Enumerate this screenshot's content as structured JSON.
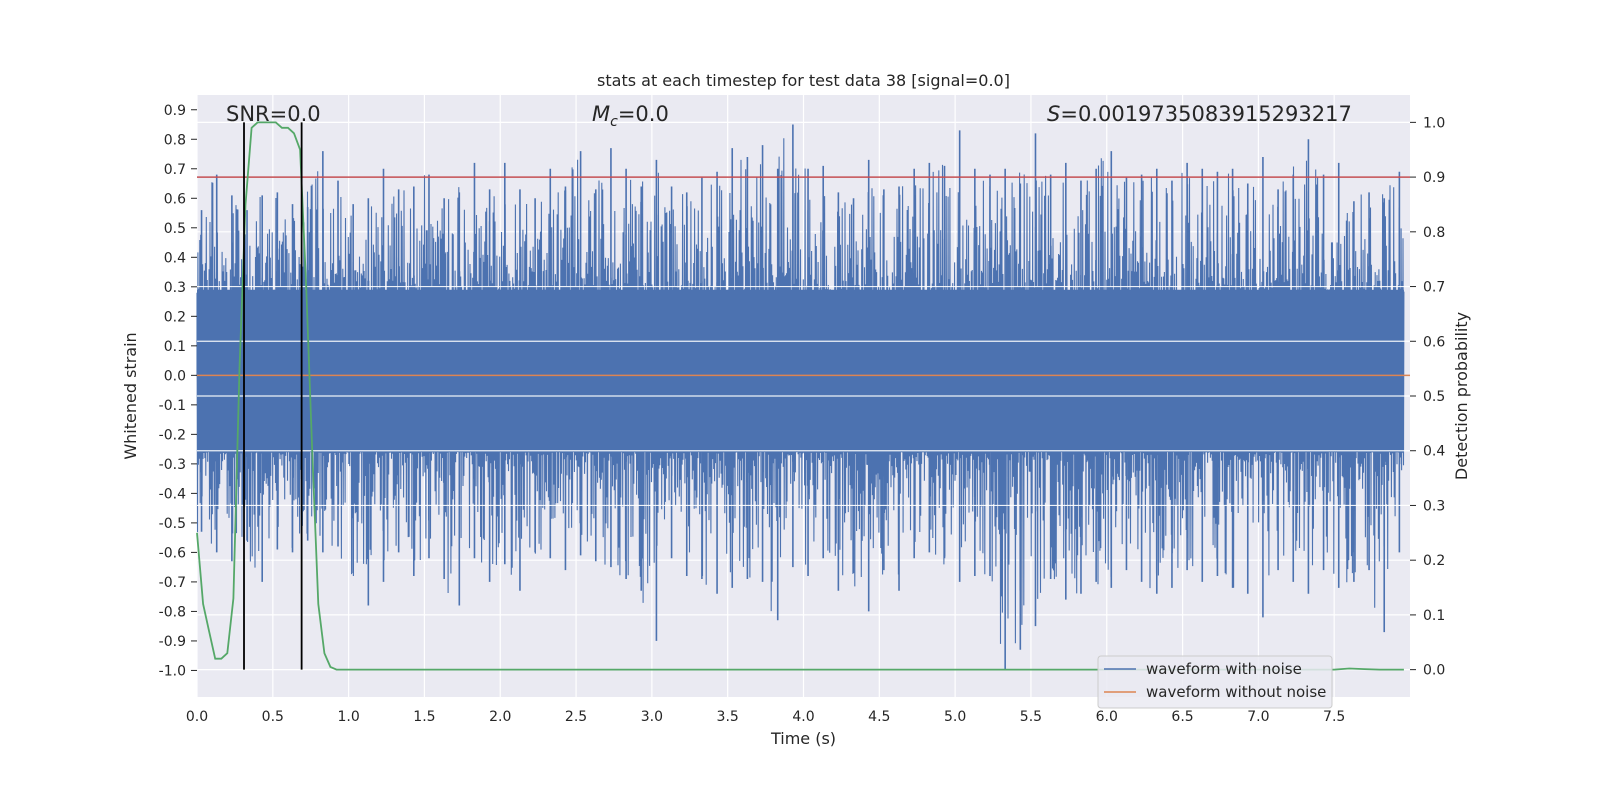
{
  "chart_data": {
    "type": "line",
    "title": "stats at each timestep for test data 38 [signal=0.0]",
    "xlabel": "Time (s)",
    "ylabel": "Whitened strain",
    "y2label": "Detection probability",
    "xlim": [
      0.0,
      8.0
    ],
    "ylim": [
      -1.09,
      0.95
    ],
    "y2lim": [
      -0.05,
      1.05
    ],
    "x_ticks": [
      "0.0",
      "0.5",
      "1.0",
      "1.5",
      "2.0",
      "2.5",
      "3.0",
      "3.5",
      "4.0",
      "4.5",
      "5.0",
      "5.5",
      "6.0",
      "6.5",
      "7.0",
      "7.5"
    ],
    "y_ticks": [
      "0.9",
      "0.8",
      "0.7",
      "0.6",
      "0.5",
      "0.4",
      "0.3",
      "0.2",
      "0.1",
      "0.0",
      "-0.1",
      "-0.2",
      "-0.3",
      "-0.4",
      "-0.5",
      "-0.6",
      "-0.7",
      "-0.8",
      "-0.9",
      "-1.0"
    ],
    "y2_ticks": [
      "1.0",
      "0.9",
      "0.8",
      "0.7",
      "0.6",
      "0.5",
      "0.4",
      "0.3",
      "0.2",
      "0.1",
      "0.0"
    ],
    "grid": true,
    "legend_position": "lower-right",
    "annotations": {
      "snr": "SNR=0.0",
      "mc": "=0.0",
      "mc_symbol": "M",
      "mc_sub": "c",
      "s": "=0.0019735083915293217",
      "s_symbol": "S"
    },
    "series": [
      {
        "name": "waveform with noise",
        "color": "#4c72b0",
        "axis": "left",
        "envelope": {
          "x": [
            0.0,
            0.1,
            0.2,
            0.3,
            0.4,
            0.5,
            0.6,
            0.7,
            0.8,
            0.9,
            1.0,
            1.1,
            1.2,
            1.3,
            1.4,
            1.5,
            1.6,
            1.7,
            1.8,
            1.9,
            2.0,
            2.1,
            2.2,
            2.3,
            2.4,
            2.5,
            2.6,
            2.7,
            2.8,
            2.9,
            3.0,
            3.1,
            3.2,
            3.3,
            3.4,
            3.5,
            3.6,
            3.7,
            3.8,
            3.9,
            4.0,
            4.1,
            4.2,
            4.3,
            4.4,
            4.5,
            4.6,
            4.7,
            4.8,
            4.9,
            5.0,
            5.1,
            5.2,
            5.3,
            5.4,
            5.5,
            5.6,
            5.7,
            5.8,
            5.9,
            6.0,
            6.1,
            6.2,
            6.3,
            6.4,
            6.5,
            6.6,
            6.7,
            6.8,
            6.9,
            7.0,
            7.1,
            7.2,
            7.3,
            7.4,
            7.5,
            7.6,
            7.7,
            7.8,
            7.9,
            8.0
          ],
          "upper": [
            0.56,
            0.68,
            0.61,
            0.56,
            0.61,
            0.62,
            0.58,
            0.57,
            0.76,
            0.66,
            0.58,
            0.6,
            0.7,
            0.63,
            0.64,
            0.68,
            0.6,
            0.62,
            0.72,
            0.63,
            0.72,
            0.63,
            0.6,
            0.7,
            0.64,
            0.76,
            0.63,
            0.77,
            0.7,
            0.64,
            0.73,
            0.64,
            0.62,
            0.67,
            0.69,
            0.77,
            0.74,
            0.78,
            0.7,
            0.85,
            0.7,
            0.71,
            0.62,
            0.6,
            0.73,
            0.63,
            0.64,
            0.7,
            0.72,
            0.71,
            0.83,
            0.7,
            0.68,
            0.7,
            0.65,
            0.82,
            0.68,
            0.72,
            0.66,
            0.7,
            0.76,
            0.67,
            0.68,
            0.7,
            0.66,
            0.72,
            0.7,
            0.69,
            0.7,
            0.65,
            0.74,
            0.63,
            0.68,
            0.8,
            0.68,
            0.72,
            0.59,
            0.62,
            0.6,
            0.69,
            0.53
          ],
          "lower": [
            -0.53,
            -0.6,
            -0.63,
            -0.56,
            -0.7,
            -0.59,
            -0.6,
            -0.56,
            -0.6,
            -0.58,
            -0.67,
            -0.78,
            -0.7,
            -0.6,
            -0.68,
            -0.62,
            -0.69,
            -0.78,
            -0.62,
            -0.7,
            -0.64,
            -0.73,
            -0.6,
            -0.62,
            -0.66,
            -0.61,
            -0.63,
            -0.65,
            -0.69,
            -0.73,
            -0.9,
            -0.62,
            -0.68,
            -0.69,
            -0.74,
            -0.72,
            -0.69,
            -0.7,
            -0.83,
            -0.65,
            -0.68,
            -0.62,
            -0.73,
            -0.67,
            -0.8,
            -0.66,
            -0.73,
            -0.62,
            -0.6,
            -0.62,
            -0.7,
            -0.68,
            -0.68,
            -1.0,
            -0.93,
            -0.85,
            -0.69,
            -0.76,
            -0.74,
            -0.7,
            -0.72,
            -0.66,
            -0.7,
            -0.74,
            -0.72,
            -0.66,
            -0.7,
            -0.68,
            -0.72,
            -0.74,
            -0.82,
            -0.66,
            -0.7,
            -0.74,
            -0.66,
            -0.72,
            -0.7,
            -0.66,
            -0.87,
            -0.6,
            -0.6
          ]
        }
      },
      {
        "name": "waveform without noise",
        "color": "#dd8452",
        "axis": "left",
        "x": [
          0.0,
          8.0
        ],
        "y": [
          0.0,
          0.0
        ]
      },
      {
        "name": "",
        "color": "#55a868",
        "axis": "right",
        "x": [
          0.0,
          0.04,
          0.08,
          0.12,
          0.16,
          0.2,
          0.24,
          0.28,
          0.32,
          0.36,
          0.4,
          0.44,
          0.48,
          0.52,
          0.56,
          0.6,
          0.64,
          0.68,
          0.72,
          0.76,
          0.8,
          0.84,
          0.88,
          0.92,
          0.96,
          1.0,
          2.0,
          3.0,
          4.0,
          5.0,
          6.0,
          7.0,
          7.2,
          7.4,
          7.5,
          7.6,
          7.7,
          7.8,
          7.96
        ],
        "y": [
          0.25,
          0.12,
          0.07,
          0.02,
          0.02,
          0.03,
          0.13,
          0.55,
          0.85,
          0.99,
          1.0,
          1.0,
          1.0,
          1.0,
          0.99,
          0.99,
          0.98,
          0.95,
          0.7,
          0.4,
          0.12,
          0.03,
          0.005,
          0.0,
          0.0,
          0.0,
          0.0,
          0.0,
          0.0,
          0.0,
          0.0,
          0.0,
          0.0,
          0.0,
          0.0,
          0.002,
          0.001,
          0.0,
          0.0
        ]
      }
    ],
    "threshold": {
      "value": 0.9,
      "axis": "right",
      "color": "#c44e52"
    },
    "markers": {
      "x": [
        0.31,
        0.69
      ],
      "color": "#000000"
    }
  }
}
